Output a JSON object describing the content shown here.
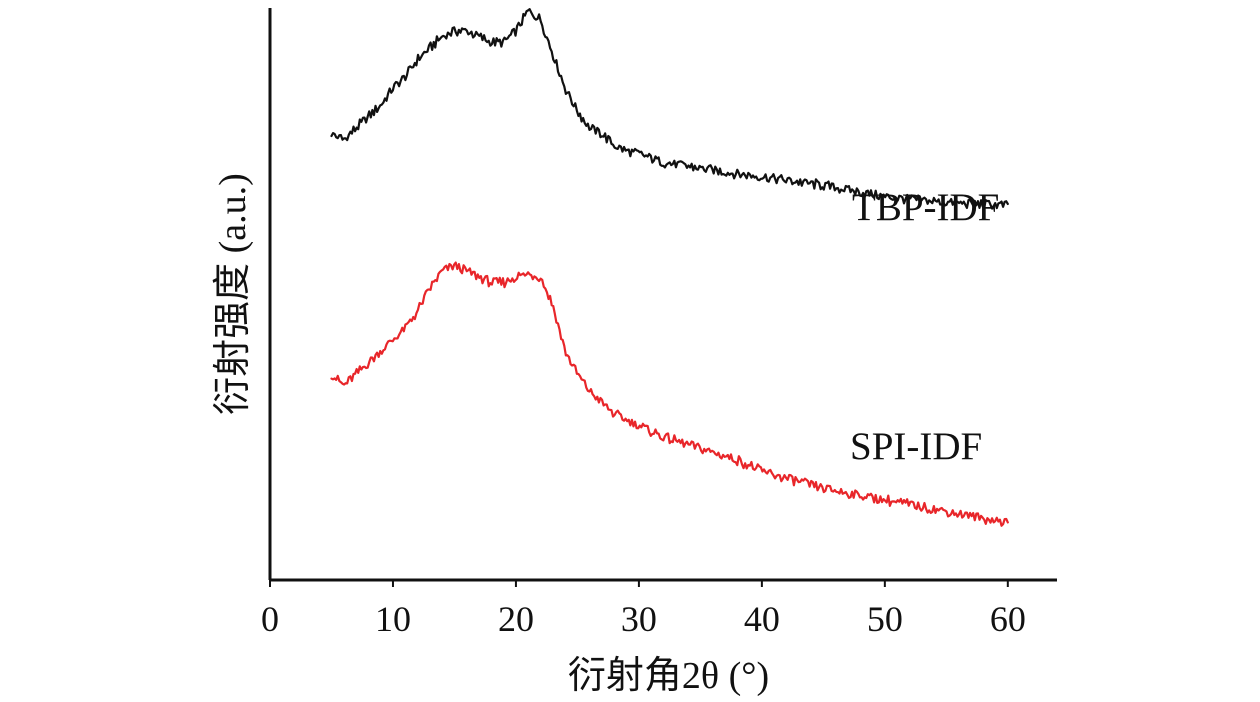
{
  "chart_data": {
    "type": "line",
    "title": "",
    "xlabel": "衍射角2θ (°)",
    "ylabel": "衍射强度 (a.u.)",
    "xlim": [
      0,
      64
    ],
    "ylim": [
      0,
      1
    ],
    "xticks": [
      0,
      10,
      20,
      30,
      40,
      50,
      60
    ],
    "y_ticks_visible": false,
    "grid": false,
    "legend": "inline labels",
    "series": [
      {
        "name": "TBP-IDF",
        "label": "TBP-IDF",
        "color": "#111111",
        "x": [
          5,
          6,
          7,
          8,
          9,
          10,
          11,
          12,
          13,
          14,
          15,
          16,
          17,
          18,
          19,
          20,
          21,
          22,
          23,
          24,
          25,
          26,
          27,
          28,
          29,
          30,
          32,
          35,
          38,
          40,
          45,
          50,
          55,
          60
        ],
        "y": [
          0.78,
          0.77,
          0.79,
          0.81,
          0.83,
          0.86,
          0.88,
          0.91,
          0.93,
          0.95,
          0.96,
          0.96,
          0.95,
          0.94,
          0.94,
          0.96,
          0.995,
          0.98,
          0.92,
          0.86,
          0.82,
          0.79,
          0.78,
          0.76,
          0.75,
          0.745,
          0.73,
          0.72,
          0.71,
          0.705,
          0.69,
          0.67,
          0.66,
          0.655
        ]
      },
      {
        "name": "SPI-IDF",
        "label": "SPI-IDF",
        "color": "#e8262a",
        "x": [
          5,
          6,
          7,
          8,
          9,
          10,
          11,
          12,
          13,
          14,
          15,
          16,
          17,
          18,
          19,
          20,
          21,
          22,
          23,
          24,
          25,
          26,
          27,
          28,
          29,
          30,
          32,
          35,
          38,
          40,
          45,
          50,
          55,
          60
        ],
        "y": [
          0.36,
          0.34,
          0.36,
          0.38,
          0.4,
          0.42,
          0.44,
          0.47,
          0.51,
          0.54,
          0.55,
          0.54,
          0.53,
          0.52,
          0.52,
          0.53,
          0.535,
          0.53,
          0.48,
          0.4,
          0.36,
          0.33,
          0.31,
          0.29,
          0.28,
          0.27,
          0.25,
          0.23,
          0.21,
          0.19,
          0.16,
          0.14,
          0.12,
          0.1
        ]
      }
    ]
  }
}
